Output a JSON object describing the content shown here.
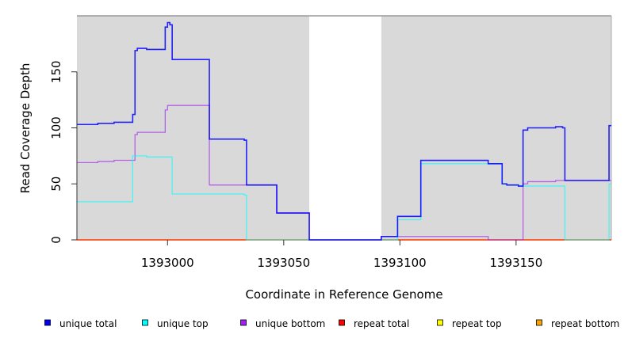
{
  "chart_data": {
    "type": "line",
    "step": true,
    "title": "",
    "xlabel": "Coordinate in Reference Genome",
    "ylabel": "Read Coverage Depth",
    "xlim": [
      1392961,
      1393191
    ],
    "ylim": [
      0,
      200
    ],
    "xticks": [
      1393000,
      1393050,
      1393100,
      1393150
    ],
    "xtick_labels": [
      "1393000",
      "1393050",
      "1393100",
      "1393150"
    ],
    "yticks": [
      0,
      50,
      100,
      150
    ],
    "ytick_labels": [
      "0",
      "50",
      "100",
      "150"
    ],
    "shaded_regions": [
      [
        1392961,
        1393061
      ],
      [
        1393092,
        1393191
      ]
    ],
    "shade_color": "#d9d9d9",
    "legend_position": "bottom",
    "series": [
      {
        "name": "unique total",
        "color": "#0000ff",
        "points": [
          [
            1392961,
            103
          ],
          [
            1392970,
            104
          ],
          [
            1392977,
            105
          ],
          [
            1392985,
            112
          ],
          [
            1392986,
            169
          ],
          [
            1392987,
            171
          ],
          [
            1392991,
            170
          ],
          [
            1392999,
            190
          ],
          [
            1393000,
            194
          ],
          [
            1393001,
            192
          ],
          [
            1393002,
            161
          ],
          [
            1393018,
            90
          ],
          [
            1393033,
            89
          ],
          [
            1393034,
            49
          ],
          [
            1393047,
            24
          ],
          [
            1393061,
            0
          ],
          [
            1393092,
            3
          ],
          [
            1393099,
            21
          ],
          [
            1393109,
            71
          ],
          [
            1393138,
            68
          ],
          [
            1393144,
            50
          ],
          [
            1393146,
            49
          ],
          [
            1393151,
            48
          ],
          [
            1393153,
            98
          ],
          [
            1393155,
            100
          ],
          [
            1393167,
            101
          ],
          [
            1393170,
            100
          ],
          [
            1393171,
            53
          ],
          [
            1393190,
            102
          ]
        ]
      },
      {
        "name": "unique top",
        "color": "#00ffff",
        "points": [
          [
            1392961,
            34
          ],
          [
            1392985,
            75
          ],
          [
            1392991,
            74
          ],
          [
            1393002,
            41
          ],
          [
            1393033,
            40
          ],
          [
            1393034,
            0
          ],
          [
            1393099,
            18
          ],
          [
            1393109,
            68
          ],
          [
            1393138,
            68
          ],
          [
            1393144,
            50
          ],
          [
            1393146,
            49
          ],
          [
            1393151,
            48
          ],
          [
            1393171,
            0
          ],
          [
            1393190,
            50
          ]
        ]
      },
      {
        "name": "unique bottom",
        "color": "#a020f0",
        "points": [
          [
            1392961,
            69
          ],
          [
            1392970,
            70
          ],
          [
            1392977,
            71
          ],
          [
            1392986,
            94
          ],
          [
            1392987,
            96
          ],
          [
            1392999,
            116
          ],
          [
            1393000,
            120
          ],
          [
            1393018,
            49
          ],
          [
            1393047,
            24
          ],
          [
            1393061,
            0
          ],
          [
            1393092,
            3
          ],
          [
            1393138,
            0
          ],
          [
            1393153,
            50
          ],
          [
            1393155,
            52
          ],
          [
            1393167,
            53
          ]
        ]
      },
      {
        "name": "repeat total",
        "color": "#ff0000",
        "points": [
          [
            1392961,
            0
          ]
        ]
      },
      {
        "name": "repeat top",
        "color": "#ffff00",
        "points": [
          [
            1392961,
            0
          ]
        ]
      },
      {
        "name": "repeat bottom",
        "color": "#ffa500",
        "points": [
          [
            1392961,
            0
          ]
        ]
      }
    ]
  }
}
